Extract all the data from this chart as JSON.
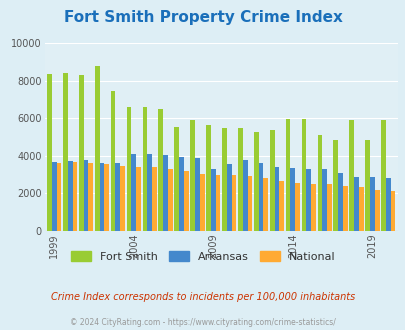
{
  "title": "Fort Smith Property Crime Index",
  "title_color": "#1a6fba",
  "subtitle": "Crime Index corresponds to incidents per 100,000 inhabitants",
  "footer": "© 2024 CityRating.com - https://www.cityrating.com/crime-statistics/",
  "years": [
    1999,
    2000,
    2001,
    2002,
    2003,
    2004,
    2005,
    2006,
    2007,
    2008,
    2009,
    2010,
    2011,
    2012,
    2013,
    2014,
    2015,
    2016,
    2017,
    2018,
    2019,
    2020
  ],
  "fort_smith": [
    8350,
    8400,
    8320,
    8750,
    7450,
    6600,
    6600,
    6500,
    5550,
    5900,
    5620,
    5500,
    5500,
    5280,
    5350,
    5980,
    5960,
    5100,
    4820,
    5890,
    4820,
    5900
  ],
  "arkansas": [
    3650,
    3700,
    3750,
    3620,
    3600,
    4100,
    4100,
    4020,
    3950,
    3870,
    3280,
    3570,
    3750,
    3620,
    3380,
    3350,
    3300,
    3300,
    3080,
    2890,
    2870,
    2830
  ],
  "national": [
    3600,
    3650,
    3600,
    3550,
    3450,
    3400,
    3400,
    3320,
    3200,
    3050,
    3000,
    2980,
    2900,
    2820,
    2640,
    2550,
    2490,
    2490,
    2390,
    2350,
    2180,
    2100
  ],
  "bar_width": 0.3,
  "fort_smith_color": "#99cc33",
  "arkansas_color": "#4488cc",
  "national_color": "#ffaa33",
  "bg_color": "#ddeef5",
  "plot_bg_color": "#e0eff5",
  "ylim": [
    0,
    10000
  ],
  "yticks": [
    0,
    2000,
    4000,
    6000,
    8000,
    10000
  ],
  "xtick_years": [
    1999,
    2004,
    2009,
    2014,
    2019
  ],
  "grid_color": "#ffffff",
  "subtitle_color": "#cc3300",
  "footer_color": "#999999"
}
